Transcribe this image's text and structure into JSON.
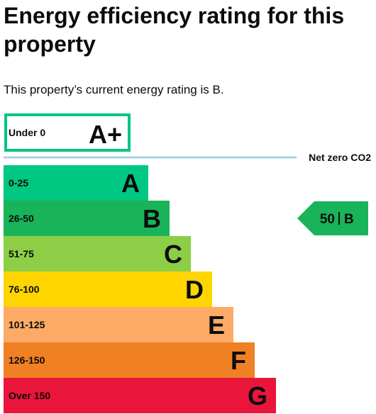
{
  "page": {
    "title": "Energy efficiency rating for this property",
    "current_rating_text": "This property’s current energy rating is B."
  },
  "chart_data": {
    "type": "bar",
    "categories": [
      "A+",
      "A",
      "B",
      "C",
      "D",
      "E",
      "F",
      "G"
    ],
    "bands": [
      {
        "letter": "A+",
        "range": "Under 0",
        "color": "#ffffff",
        "border": "#00c781"
      },
      {
        "letter": "A",
        "range": "0-25",
        "color": "#00c781"
      },
      {
        "letter": "B",
        "range": "26-50",
        "color": "#19b459"
      },
      {
        "letter": "C",
        "range": "51-75",
        "color": "#8dce46"
      },
      {
        "letter": "D",
        "range": "76-100",
        "color": "#ffd500"
      },
      {
        "letter": "E",
        "range": "101-125",
        "color": "#fcaa65"
      },
      {
        "letter": "F",
        "range": "126-150",
        "color": "#ef8023"
      },
      {
        "letter": "G",
        "range": "Over 150",
        "color": "#e9153b"
      }
    ],
    "net_zero_label": "Net zero CO2",
    "net_zero_line_color": "#a6d1e3",
    "current": {
      "value": 50,
      "band": "B",
      "label_value": "50",
      "label_band": "B",
      "color": "#19b459"
    }
  }
}
